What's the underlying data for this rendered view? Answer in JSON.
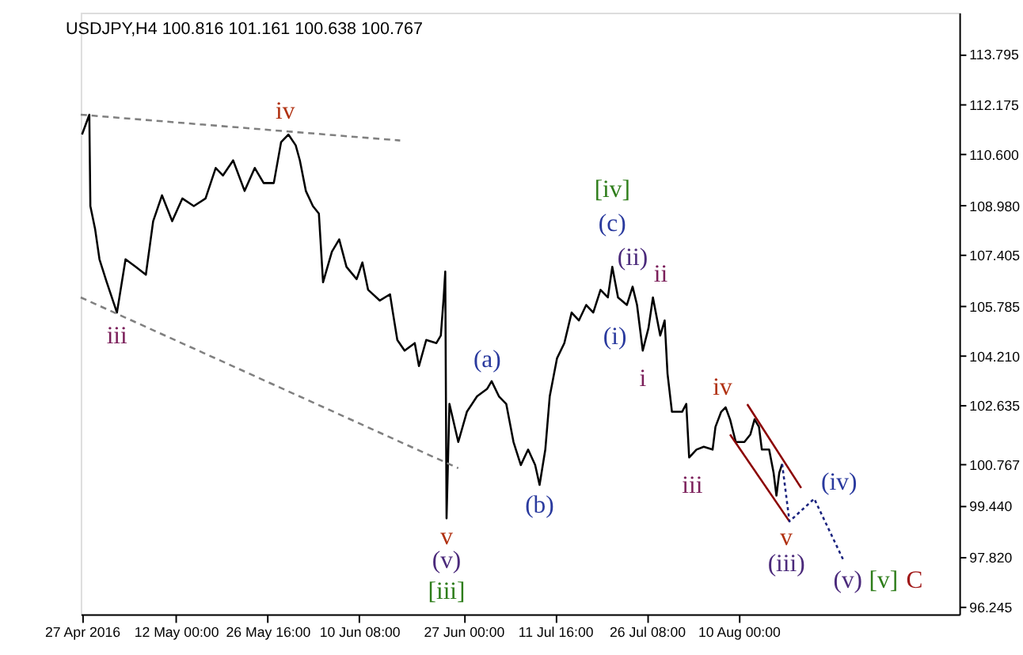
{
  "chart_data": {
    "type": "line",
    "title": "USDJPY,H4  100.816 101.161 100.638 100.767",
    "xlim": [
      "2016-04-26T19:00",
      "2016-09-14T07:00"
    ],
    "ylim": [
      96.0,
      115.1
    ],
    "xticks": [
      {
        "value": "2016-04-27",
        "label": "27 Apr 2016"
      },
      {
        "value": "2016-05-12T00:00",
        "label": "12 May 00:00"
      },
      {
        "value": "2016-05-26T16:00",
        "label": "26 May 16:00"
      },
      {
        "value": "2016-06-10T08:00",
        "label": "10 Jun 08:00"
      },
      {
        "value": "2016-06-27T00:00",
        "label": "27 Jun 00:00"
      },
      {
        "value": "2016-07-11T16:00",
        "label": "11 Jul 16:00"
      },
      {
        "value": "2016-07-26T08:00",
        "label": "26 Jul 08:00"
      },
      {
        "value": "2016-08-10T00:00",
        "label": "10 Aug 00:00"
      }
    ],
    "yticks": [
      96.245,
      {
        "value": 97.82,
        "label": "97.820"
      },
      {
        "value": 99.44,
        "label": "99.440"
      },
      {
        "value": 100.767,
        "label": "100.767"
      },
      102.635,
      {
        "value": 104.21,
        "label": "104.210"
      },
      105.785,
      107.405,
      {
        "value": 108.98,
        "label": "108.980"
      },
      {
        "value": 110.6,
        "label": "110.600"
      },
      112.175,
      113.795
    ],
    "grid": false,
    "marker": "none",
    "series": [
      {
        "color": "#000000",
        "line_style": "solid",
        "x": [
          "2016-04-27T00:00",
          "2016-04-28T04:00",
          "2016-04-28T08:00",
          "2016-04-29T02:00",
          "2016-04-29T19:00",
          "2016-04-30T23:00",
          "2016-05-02T14:00",
          "2016-05-03T23:00",
          "2016-05-05T14:00",
          "2016-05-07T05:00",
          "2016-05-08T09:00",
          "2016-05-09T19:00",
          "2016-05-11T10:00",
          "2016-05-13T01:00",
          "2016-05-14T21:00",
          "2016-05-16T18:00",
          "2016-05-18T09:00",
          "2016-05-19T13:00",
          "2016-05-21T04:00",
          "2016-05-23T00:00",
          "2016-05-24T15:00",
          "2016-05-26T01:00",
          "2016-05-27T16:00",
          "2016-05-28T20:00",
          "2016-05-30T00:00",
          "2016-05-31T04:00",
          "2016-05-31T20:00",
          "2016-06-01T19:00",
          "2016-06-02T22:00",
          "2016-06-03T21:00",
          "2016-06-04T13:00",
          "2016-06-05T23:00",
          "2016-06-07T03:00",
          "2016-06-08T07:00",
          "2016-06-09T22:00",
          "2016-06-10T20:00",
          "2016-06-11T18:00",
          "2016-06-13T15:00",
          "2016-06-15T06:00",
          "2016-06-15T17:00",
          "2016-06-16T10:00",
          "2016-06-17T14:00",
          "2016-06-19T05:00",
          "2016-06-19T21:00",
          "2016-06-21T01:00",
          "2016-06-22T16:00",
          "2016-06-23T09:00",
          "2016-06-23T20:00",
          "2016-06-24T02:00",
          "2016-06-24T07:00",
          "2016-06-24T18:00",
          "2016-06-26T04:00",
          "2016-06-27T13:00",
          "2016-06-29T04:00",
          "2016-06-30T19:00",
          "2016-07-01T12:00",
          "2016-07-02T16:00",
          "2016-07-03T20:00",
          "2016-07-05T00:00",
          "2016-07-06T04:00",
          "2016-07-07T08:00",
          "2016-07-08T11:00",
          "2016-07-09T04:00",
          "2016-07-10T02:00",
          "2016-07-10T19:00",
          "2016-07-11T23:00",
          "2016-07-13T03:00",
          "2016-07-14T07:00",
          "2016-07-15T11:00",
          "2016-07-16T15:00",
          "2016-07-17T18:00",
          "2016-07-18T22:00",
          "2016-07-20T02:00",
          "2016-07-20T19:00",
          "2016-07-21T17:00",
          "2016-07-23T03:00",
          "2016-07-24T01:00",
          "2016-07-24T18:00",
          "2016-07-25T16:00",
          "2016-07-26T14:00",
          "2016-07-27T07:00",
          "2016-07-27T18:00",
          "2016-07-28T11:00",
          "2016-07-29T04:00",
          "2016-07-29T15:00",
          "2016-07-30T08:00",
          "2016-07-31T23:00",
          "2016-08-01T15:00",
          "2016-08-02T02:00",
          "2016-08-03T06:00",
          "2016-08-04T10:00",
          "2016-08-05T20:00",
          "2016-08-06T07:00",
          "2016-08-07T05:00",
          "2016-08-07T22:00",
          "2016-08-08T15:00",
          "2016-08-09T13:00",
          "2016-08-10T22:00",
          "2016-08-11T21:00",
          "2016-08-12T13:00",
          "2016-08-13T06:00",
          "2016-08-13T17:00",
          "2016-08-14T21:00",
          "2016-08-15T14:00",
          "2016-08-16T01:00",
          "2016-08-16T12:00",
          "2016-08-16T23:00"
        ],
        "values": [
          111.23,
          111.86,
          108.96,
          108.24,
          107.27,
          106.54,
          105.58,
          107.27,
          107.03,
          106.78,
          108.48,
          109.3,
          108.48,
          109.2,
          108.96,
          109.2,
          110.17,
          109.93,
          110.41,
          109.44,
          110.17,
          109.69,
          109.69,
          110.99,
          111.23,
          110.89,
          110.41,
          109.44,
          108.96,
          108.72,
          106.54,
          107.51,
          107.9,
          107.03,
          106.64,
          107.17,
          106.3,
          105.96,
          106.16,
          105.58,
          104.71,
          104.37,
          104.61,
          103.88,
          104.71,
          104.61,
          104.85,
          106.06,
          106.88,
          99.05,
          102.68,
          101.47,
          102.43,
          102.92,
          103.16,
          103.4,
          102.92,
          102.68,
          101.47,
          100.74,
          101.23,
          100.74,
          100.11,
          101.23,
          102.92,
          104.13,
          104.61,
          105.58,
          105.33,
          105.82,
          105.58,
          106.3,
          106.06,
          107.03,
          106.06,
          105.82,
          106.4,
          105.82,
          104.37,
          105.09,
          106.06,
          105.58,
          104.85,
          105.33,
          103.64,
          102.43,
          102.43,
          102.68,
          100.98,
          101.23,
          101.32,
          101.23,
          101.95,
          102.43,
          102.57,
          102.19,
          101.47,
          101.47,
          101.71,
          102.19,
          101.95,
          101.23,
          101.23,
          100.5,
          99.77,
          100.5,
          100.77
        ]
      },
      {
        "color": "#808080",
        "line_style": "dashed",
        "x": [
          "2016-04-26T19:00",
          "2016-06-16T21:00"
        ],
        "values": [
          111.86,
          111.04
        ]
      },
      {
        "color": "#808080",
        "line_style": "dashed",
        "x": [
          "2016-04-26T19:00",
          "2016-06-26T04:00"
        ],
        "values": [
          106.06,
          100.64
        ]
      },
      {
        "color": "#8b0000",
        "line_style": "solid",
        "x": [
          "2016-08-11T09:00",
          "2016-08-20T00:00"
        ],
        "values": [
          102.67,
          100.01
        ]
      },
      {
        "color": "#8b0000",
        "line_style": "solid",
        "x": [
          "2016-08-08T15:00",
          "2016-08-18T03:00"
        ],
        "values": [
          101.71,
          98.95
        ]
      },
      {
        "color": "#1a237e",
        "line_style": "dotted",
        "x": [
          "2016-08-16T23:00",
          "2016-08-18T03:00",
          "2016-08-22T02:00",
          "2016-08-26T17:00"
        ],
        "values": [
          100.77,
          98.95,
          99.67,
          97.74
        ]
      }
    ],
    "annotations": [
      {
        "text": "iv",
        "x": "2016-05-30T00:00",
        "y": 111.23
      },
      {
        "text": "iii",
        "x": "2016-05-02T14:00",
        "y": 105.58
      },
      {
        "text": "v",
        "x": "2016-06-24T07:00",
        "y": 99.05
      },
      {
        "text": "(v)",
        "x": "2016-06-24T07:00",
        "y": 99.05
      },
      {
        "text": "[iii]",
        "x": "2016-06-24T07:00",
        "y": 99.05
      },
      {
        "text": "(a)",
        "x": "2016-06-30T19:00",
        "y": 103.16
      },
      {
        "text": "(b)",
        "x": "2016-07-09T04:00",
        "y": 100.11
      },
      {
        "text": "[iv]",
        "x": "2016-07-20T19:00",
        "y": 107.03
      },
      {
        "text": "(c)",
        "x": "2016-07-20T19:00",
        "y": 107.03
      },
      {
        "text": "(ii)",
        "x": "2016-07-24T01:00",
        "y": 106.4
      },
      {
        "text": "ii",
        "x": "2016-07-27T07:00",
        "y": 106.06
      },
      {
        "text": "(i)",
        "x": "2016-07-21T17:00",
        "y": 106.06
      },
      {
        "text": "i",
        "x": "2016-07-25T16:00",
        "y": 104.37
      },
      {
        "text": "iii",
        "x": "2016-08-02T02:00",
        "y": 100.98
      },
      {
        "text": "iv",
        "x": "2016-08-07T22:00",
        "y": 102.57
      },
      {
        "text": "v",
        "x": "2016-08-18T03:00",
        "y": 98.95
      },
      {
        "text": "(iii)",
        "x": "2016-08-18T03:00",
        "y": 98.95
      },
      {
        "text": "(iv)",
        "x": "2016-08-22T02:00",
        "y": 99.67
      },
      {
        "text": "(v)",
        "x": "2016-08-26T17:00",
        "y": 97.74
      },
      {
        "text": "[v]",
        "x": "2016-08-26T17:00",
        "y": 97.74
      },
      {
        "text": "C",
        "x": "2016-08-26T17:00",
        "y": 97.74
      }
    ]
  }
}
